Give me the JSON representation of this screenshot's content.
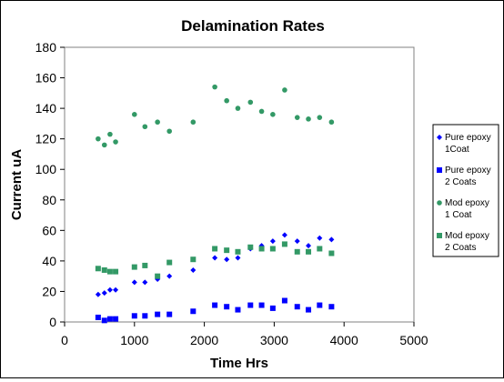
{
  "chart_data": {
    "type": "scatter",
    "title": "Delamination Rates",
    "xlabel": "Time Hrs",
    "ylabel": "Current uA",
    "xlim": [
      0,
      5000
    ],
    "ylim": [
      0,
      180
    ],
    "xticks": [
      0,
      1000,
      2000,
      3000,
      4000,
      5000
    ],
    "yticks": [
      0,
      20,
      40,
      60,
      80,
      100,
      120,
      140,
      160,
      180
    ],
    "grid": false,
    "legend": "right",
    "series": [
      {
        "name": "Pure epoxy\n1Coat",
        "color": "#0000FF",
        "marker": "diamond",
        "x": [
          480,
          570,
          650,
          730,
          1000,
          1150,
          1330,
          1500,
          1840,
          2150,
          2320,
          2480,
          2660,
          2820,
          2980,
          3150,
          3330,
          3490,
          3650,
          3820
        ],
        "y": [
          18,
          19,
          21,
          21,
          26,
          26,
          28,
          30,
          34,
          42,
          41,
          42,
          48,
          50,
          53,
          57,
          53,
          50,
          55,
          54
        ]
      },
      {
        "name": "Pure epoxy\n2 Coats",
        "color": "#0000FF",
        "marker": "square",
        "x": [
          480,
          570,
          650,
          730,
          1000,
          1150,
          1330,
          1500,
          1840,
          2150,
          2320,
          2480,
          2660,
          2820,
          2980,
          3150,
          3330,
          3490,
          3650,
          3820
        ],
        "y": [
          3,
          1,
          2,
          2,
          4,
          4,
          5,
          5,
          7,
          11,
          10,
          8,
          11,
          11,
          9,
          14,
          10,
          8,
          11,
          10
        ]
      },
      {
        "name": "Mod epoxy\n1 Coat",
        "color": "#339966",
        "marker": "circle",
        "x": [
          480,
          570,
          650,
          730,
          1000,
          1150,
          1330,
          1500,
          1840,
          2150,
          2320,
          2480,
          2660,
          2820,
          2980,
          3150,
          3330,
          3490,
          3650,
          3820
        ],
        "y": [
          120,
          116,
          123,
          118,
          136,
          128,
          131,
          125,
          131,
          154,
          145,
          140,
          144,
          138,
          136,
          152,
          134,
          133,
          134,
          131
        ]
      },
      {
        "name": "Mod epoxy\n2 Coats",
        "color": "#339966",
        "marker": "square",
        "x": [
          480,
          570,
          650,
          730,
          1000,
          1150,
          1330,
          1500,
          1840,
          2150,
          2320,
          2480,
          2660,
          2820,
          2980,
          3150,
          3330,
          3490,
          3650,
          3820
        ],
        "y": [
          35,
          34,
          33,
          33,
          36,
          37,
          30,
          39,
          41,
          48,
          47,
          46,
          49,
          48,
          48,
          51,
          46,
          46,
          48,
          45
        ]
      }
    ]
  }
}
